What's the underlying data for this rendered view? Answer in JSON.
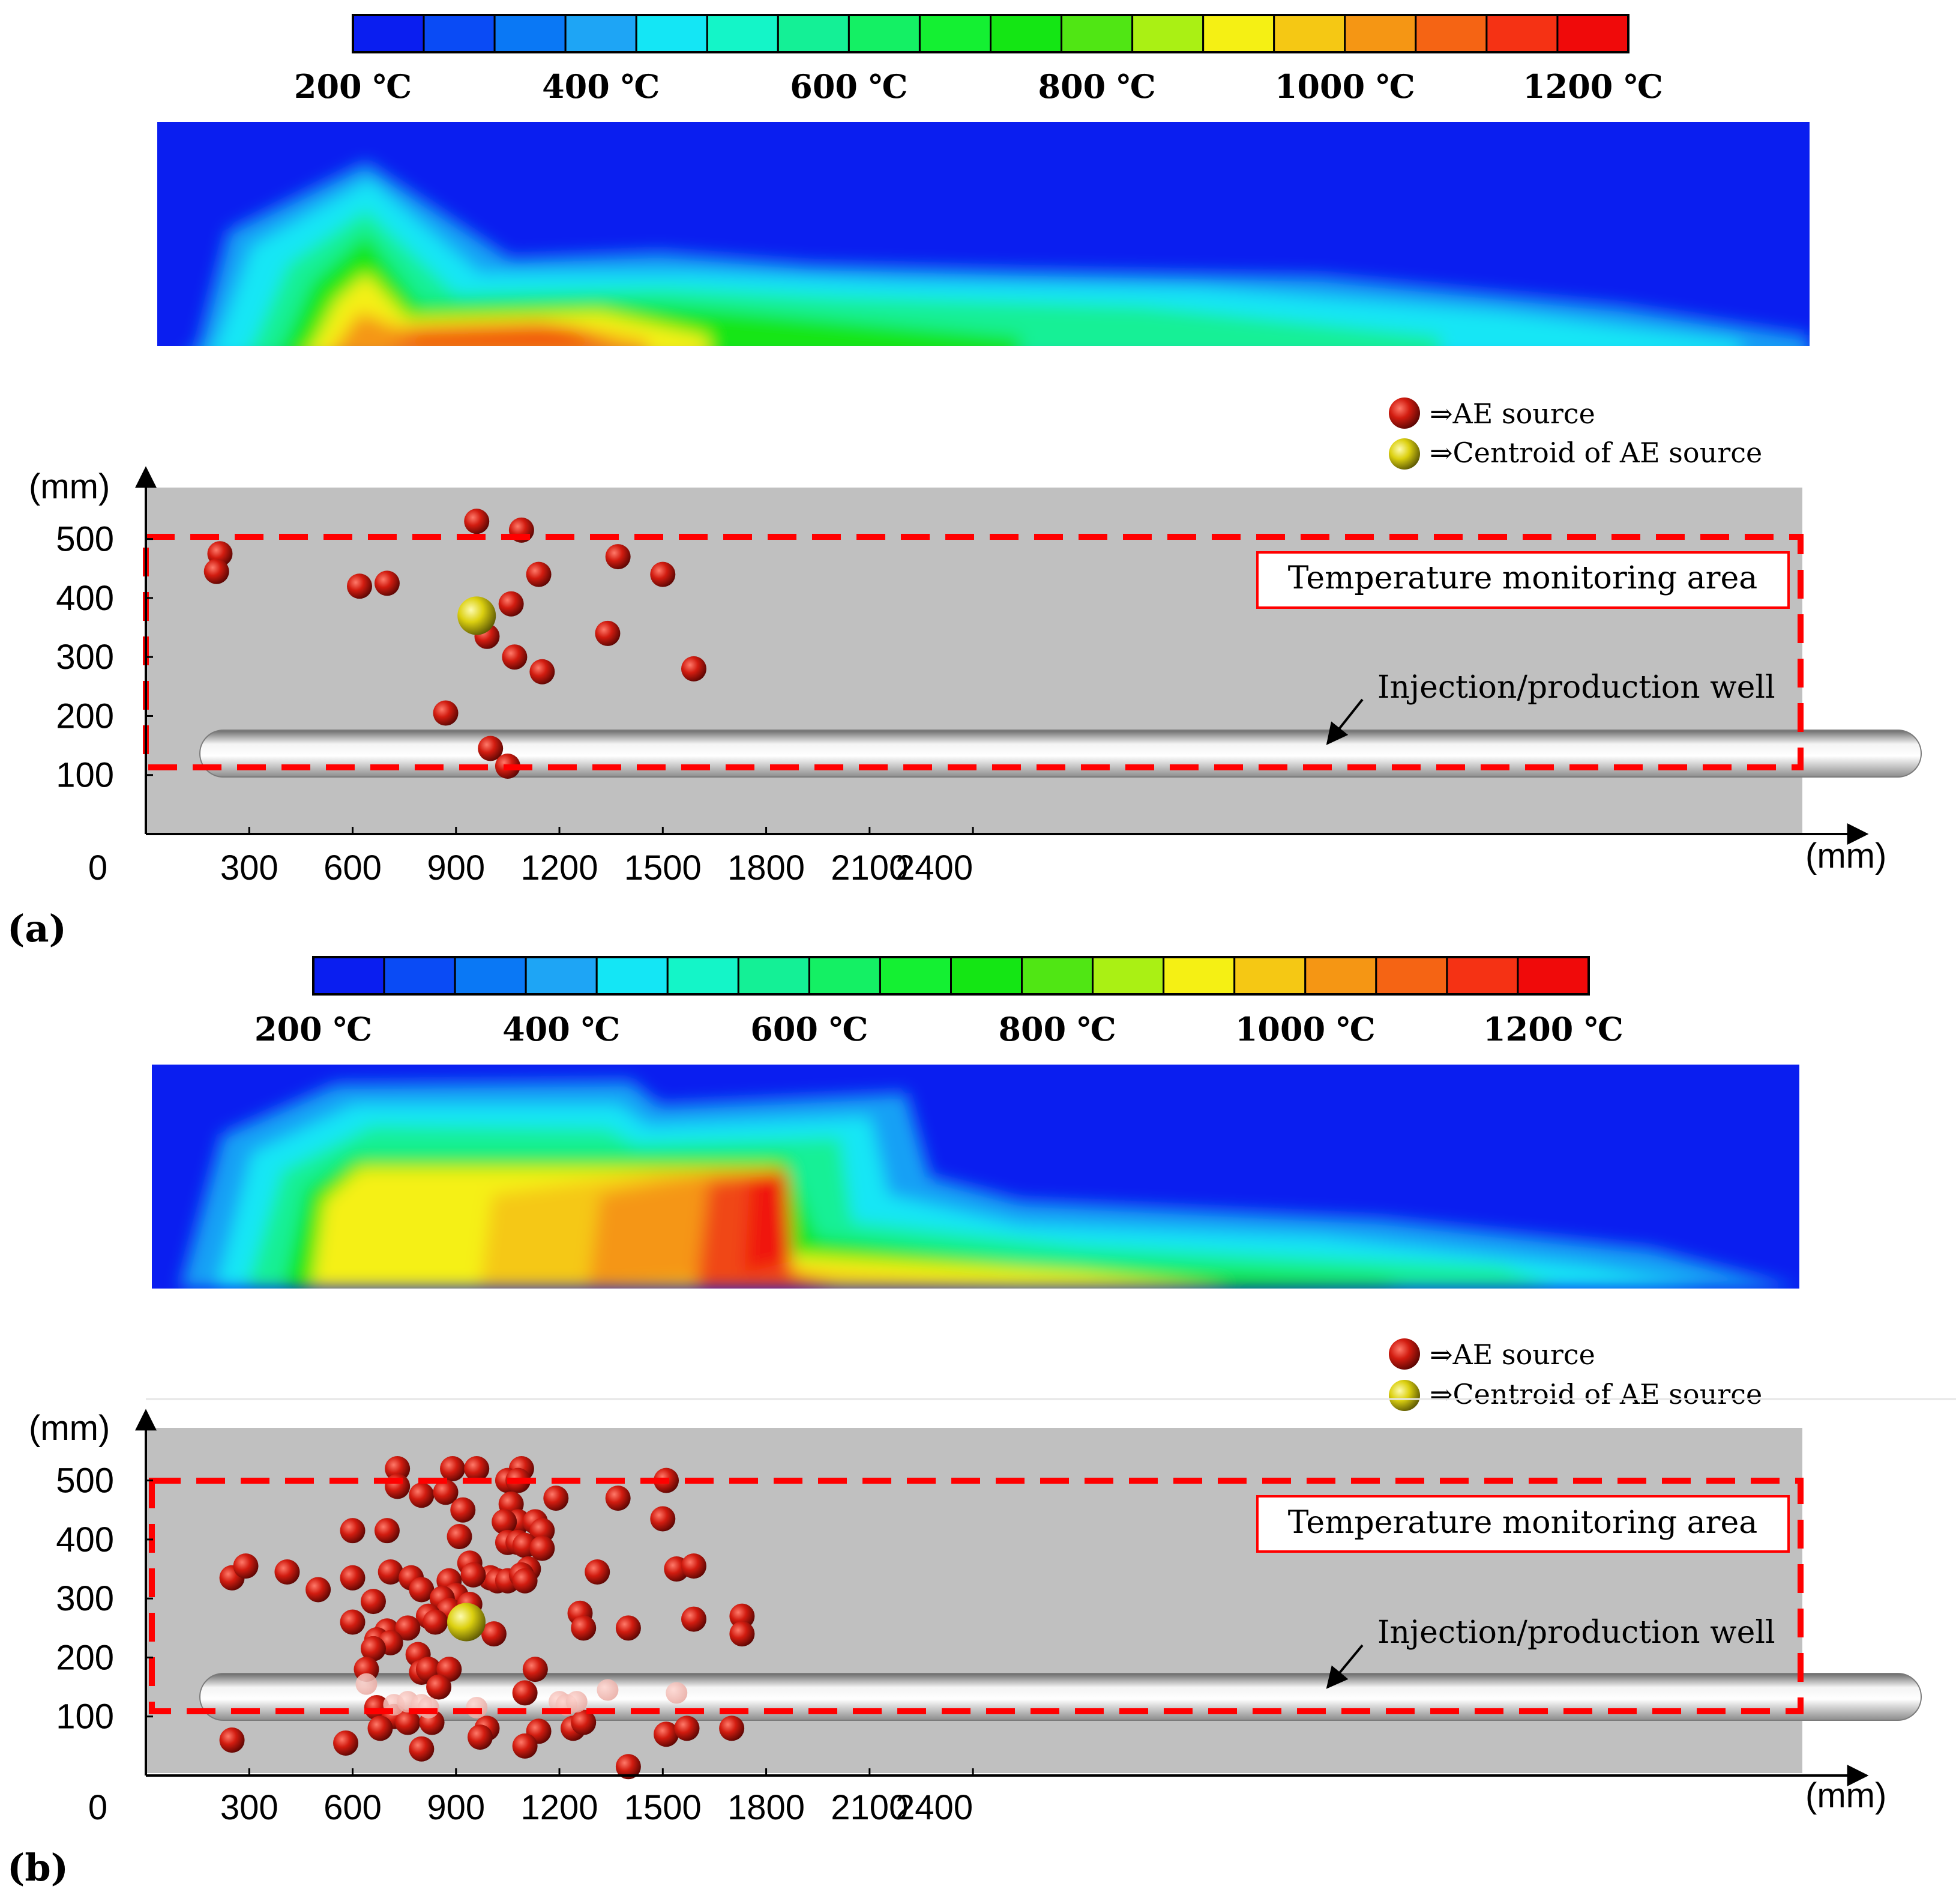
{
  "colorbar": {
    "colors": [
      "#0a1ef0",
      "#0a4bf5",
      "#0a78f5",
      "#1ea5f5",
      "#14e6f5",
      "#14f5c8",
      "#14f096",
      "#14f064",
      "#14f032",
      "#14e614",
      "#50e614",
      "#aaf014",
      "#f5f014",
      "#f5c814",
      "#f59614",
      "#f56414",
      "#f53214",
      "#f00a0a"
    ],
    "labels": [
      "200 ℃",
      "400 ℃",
      "600 ℃",
      "800 ℃",
      "1000 ℃",
      "1200 ℃"
    ]
  },
  "legend": {
    "ae_source": "⇒AE source",
    "centroid": "⇒Centroid of AE source"
  },
  "annotations": {
    "monitoring_area": "Temperature monitoring area",
    "well": "Injection/production well"
  },
  "axes": {
    "x_unit": "(mm)",
    "y_unit": "(mm)",
    "x_ticks": [
      "0",
      "300",
      "600",
      "900",
      "1200",
      "1500",
      "1800",
      "2100",
      "2400"
    ],
    "y_ticks": [
      "100",
      "200",
      "300",
      "400",
      "500"
    ]
  },
  "panel_labels": [
    "(a)",
    "(b)"
  ],
  "chart_data": [
    {
      "type": "scatter",
      "panel": "(a)",
      "xlim": [
        0,
        2400
      ],
      "ylim": [
        0,
        580
      ],
      "series": [
        {
          "name": "AE source",
          "points": [
            [
              215,
              475
            ],
            [
              205,
              445
            ],
            [
              620,
              420
            ],
            [
              700,
              425
            ],
            [
              960,
              530
            ],
            [
              1090,
              515
            ],
            [
              1140,
              440
            ],
            [
              1060,
              390
            ],
            [
              990,
              335
            ],
            [
              1070,
              300
            ],
            [
              1150,
              275
            ],
            [
              870,
              205
            ],
            [
              1370,
              470
            ],
            [
              1340,
              340
            ],
            [
              1500,
              440
            ],
            [
              1590,
              280
            ],
            [
              1000,
              145
            ],
            [
              1050,
              115
            ]
          ]
        },
        {
          "name": "Centroid of AE source",
          "points": [
            [
              960,
              370
            ]
          ]
        }
      ]
    },
    {
      "type": "scatter",
      "panel": "(b)",
      "xlim": [
        0,
        2400
      ],
      "ylim": [
        0,
        580
      ],
      "series": [
        {
          "name": "AE source",
          "points": [
            [
              730,
              520
            ],
            [
              890,
              520
            ],
            [
              960,
              520
            ],
            [
              1090,
              520
            ],
            [
              730,
              490
            ],
            [
              800,
              475
            ],
            [
              870,
              480
            ],
            [
              1050,
              500
            ],
            [
              1080,
              500
            ],
            [
              1190,
              470
            ],
            [
              1370,
              470
            ],
            [
              1510,
              500
            ],
            [
              920,
              450
            ],
            [
              1060,
              460
            ],
            [
              1080,
              430
            ],
            [
              1040,
              430
            ],
            [
              1130,
              430
            ],
            [
              1150,
              415
            ],
            [
              1500,
              435
            ],
            [
              600,
              415
            ],
            [
              700,
              415
            ],
            [
              910,
              405
            ],
            [
              1050,
              395
            ],
            [
              1080,
              395
            ],
            [
              1100,
              390
            ],
            [
              1150,
              385
            ],
            [
              1000,
              335
            ],
            [
              1020,
              330
            ],
            [
              1050,
              330
            ],
            [
              1110,
              350
            ],
            [
              1090,
              340
            ],
            [
              1100,
              330
            ],
            [
              940,
              360
            ],
            [
              950,
              340
            ],
            [
              1310,
              345
            ],
            [
              1540,
              350
            ],
            [
              1590,
              355
            ],
            [
              250,
              335
            ],
            [
              290,
              355
            ],
            [
              410,
              345
            ],
            [
              500,
              315
            ],
            [
              600,
              335
            ],
            [
              710,
              345
            ],
            [
              770,
              335
            ],
            [
              800,
              315
            ],
            [
              660,
              295
            ],
            [
              880,
              330
            ],
            [
              900,
              305
            ],
            [
              860,
              300
            ],
            [
              880,
              280
            ],
            [
              820,
              270
            ],
            [
              840,
              260
            ],
            [
              940,
              290
            ],
            [
              1260,
              275
            ],
            [
              1270,
              250
            ],
            [
              1590,
              265
            ],
            [
              1730,
              270
            ],
            [
              1730,
              240
            ],
            [
              600,
              260
            ],
            [
              700,
              245
            ],
            [
              760,
              250
            ],
            [
              670,
              230
            ],
            [
              710,
              225
            ],
            [
              790,
              205
            ],
            [
              1010,
              240
            ],
            [
              1400,
              250
            ],
            [
              660,
              215
            ],
            [
              640,
              180
            ],
            [
              800,
              175
            ],
            [
              820,
              180
            ],
            [
              880,
              180
            ],
            [
              1130,
              180
            ],
            [
              850,
              150
            ],
            [
              1100,
              140
            ],
            [
              670,
              115
            ],
            [
              720,
              100
            ],
            [
              760,
              90
            ],
            [
              830,
              90
            ],
            [
              680,
              80
            ],
            [
              990,
              80
            ],
            [
              1140,
              75
            ],
            [
              1240,
              80
            ],
            [
              1270,
              90
            ],
            [
              1510,
              70
            ],
            [
              1570,
              80
            ],
            [
              1700,
              80
            ],
            [
              250,
              60
            ],
            [
              580,
              55
            ],
            [
              800,
              45
            ],
            [
              970,
              65
            ],
            [
              1100,
              50
            ],
            [
              1400,
              15
            ]
          ]
        },
        {
          "name": "AE source (behind well)",
          "points": [
            [
              640,
              155
            ],
            [
              720,
              120
            ],
            [
              760,
              125
            ],
            [
              800,
              120
            ],
            [
              820,
              115
            ],
            [
              960,
              115
            ],
            [
              1200,
              125
            ],
            [
              1220,
              120
            ],
            [
              1250,
              125
            ],
            [
              1340,
              145
            ],
            [
              1540,
              140
            ]
          ]
        },
        {
          "name": "Centroid of AE source",
          "points": [
            [
              930,
              260
            ]
          ]
        }
      ]
    }
  ]
}
